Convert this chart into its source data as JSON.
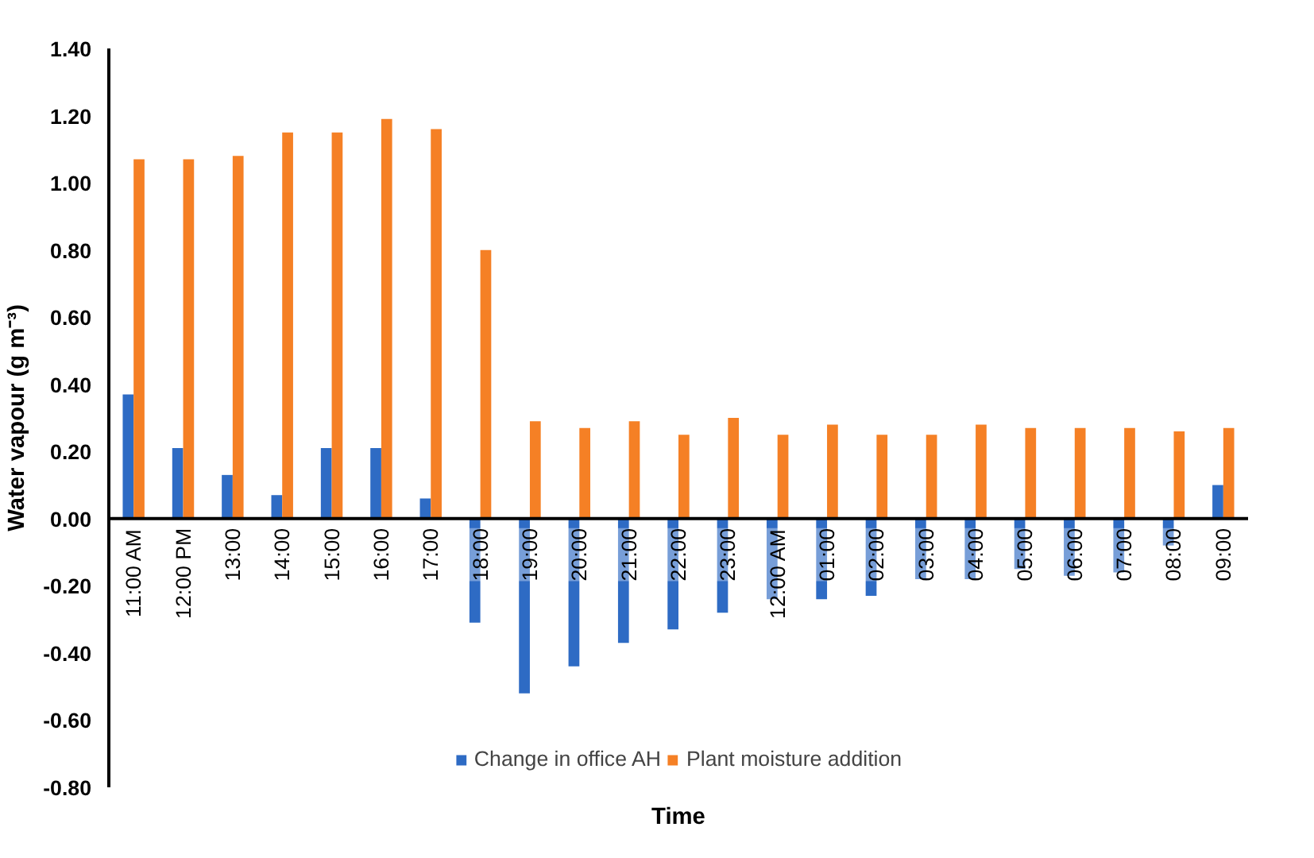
{
  "chart_data": {
    "type": "bar",
    "xlabel": "Time",
    "ylabel": "Water vapour (g m⁻³)",
    "categories": [
      "11:00 AM",
      "12:00 PM",
      "13:00",
      "14:00",
      "15:00",
      "16:00",
      "17:00",
      "18:00",
      "19:00",
      "20:00",
      "21:00",
      "22:00",
      "23:00",
      "12:00 AM",
      "01:00",
      "02:00",
      "03:00",
      "04:00",
      "05:00",
      "06:00",
      "07:00",
      "08:00",
      "09:00"
    ],
    "series": [
      {
        "name": "Change in office AH",
        "color": "#2e6bc4",
        "values": [
          0.37,
          0.21,
          0.13,
          0.07,
          0.21,
          0.21,
          0.06,
          -0.31,
          -0.52,
          -0.44,
          -0.37,
          -0.33,
          -0.28,
          -0.24,
          -0.24,
          -0.23,
          -0.18,
          -0.18,
          -0.15,
          -0.17,
          -0.16,
          -0.08,
          0.1
        ]
      },
      {
        "name": "Plant moisture addition",
        "color": "#f58025",
        "values": [
          1.07,
          1.07,
          1.08,
          1.15,
          1.15,
          1.19,
          1.16,
          0.8,
          0.29,
          0.27,
          0.29,
          0.25,
          0.3,
          0.25,
          0.28,
          0.25,
          0.25,
          0.28,
          0.27,
          0.27,
          0.27,
          0.26,
          0.27
        ]
      }
    ],
    "ylim": [
      -0.8,
      1.4
    ],
    "yticks": [
      {
        "value": -0.8,
        "label": "-0.80"
      },
      {
        "value": -0.6,
        "label": "-0.60"
      },
      {
        "value": -0.4,
        "label": "-0.40"
      },
      {
        "value": -0.2,
        "label": "-0.20"
      },
      {
        "value": 0,
        "label": "0.00"
      },
      {
        "value": 0.2,
        "label": "0.20"
      },
      {
        "value": 0.4,
        "label": "0.40"
      },
      {
        "value": 0.6,
        "label": "0.60"
      },
      {
        "value": 0.8,
        "label": "0.80"
      },
      {
        "value": 1.0,
        "label": "1.00"
      },
      {
        "value": 1.2,
        "label": "1.20"
      },
      {
        "value": 1.4,
        "label": "1.40"
      }
    ],
    "grid": false,
    "legend": "bottom"
  }
}
